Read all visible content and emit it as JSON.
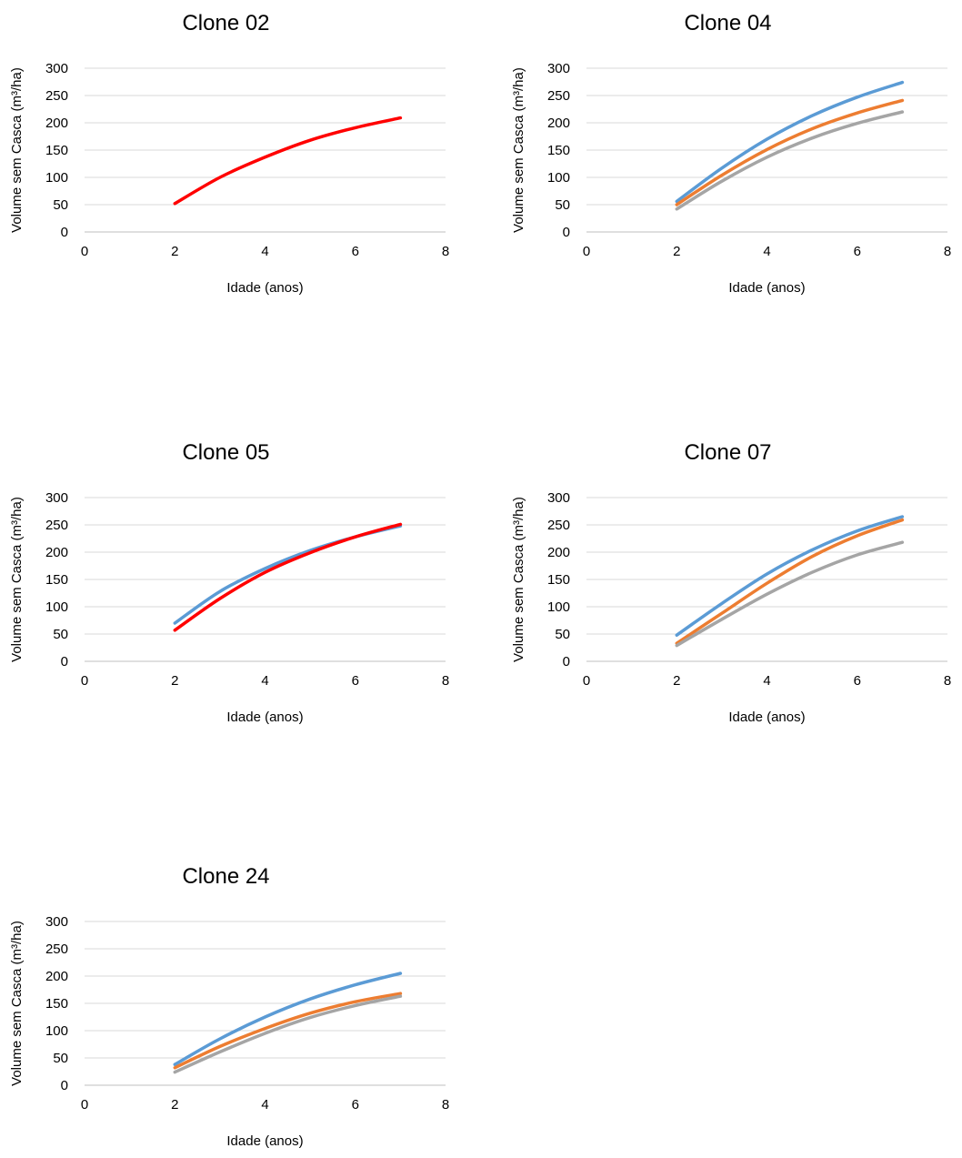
{
  "colors": {
    "blue": "#5b9bd5",
    "orange": "#ed7d31",
    "gray": "#a5a5a5",
    "red": "#ff0000",
    "grid": "#d9d9d9",
    "axis": "#bfbfbf"
  },
  "chart_data": [
    {
      "id": "clone-02",
      "type": "line",
      "title": "Clone 02",
      "xlabel": "Idade (anos)",
      "ylabel": "Volume sem Casca (m³/ha)",
      "xlim": [
        0,
        8
      ],
      "ylim": [
        0,
        300
      ],
      "xticks": [
        0,
        2,
        4,
        6,
        8
      ],
      "yticks": [
        0,
        50,
        100,
        150,
        200,
        250,
        300
      ],
      "grid": true,
      "legend": "none",
      "series": [
        {
          "color": "#ff0000",
          "points": [
            [
              2,
              52
            ],
            [
              3,
              100
            ],
            [
              4,
              137
            ],
            [
              5,
              168
            ],
            [
              6,
              191
            ],
            [
              7,
              209
            ]
          ]
        }
      ]
    },
    {
      "id": "clone-04",
      "type": "line",
      "title": "Clone 04",
      "xlabel": "Idade (anos)",
      "ylabel": "Volume sem Casca (m³/ha)",
      "xlim": [
        0,
        8
      ],
      "ylim": [
        0,
        300
      ],
      "xticks": [
        0,
        2,
        4,
        6,
        8
      ],
      "yticks": [
        0,
        50,
        100,
        150,
        200,
        250,
        300
      ],
      "grid": true,
      "legend": "none",
      "series": [
        {
          "color": "#5b9bd5",
          "points": [
            [
              2,
              56
            ],
            [
              3,
              117
            ],
            [
              4,
              170
            ],
            [
              5,
              213
            ],
            [
              6,
              247
            ],
            [
              7,
              274
            ]
          ]
        },
        {
          "color": "#ed7d31",
          "points": [
            [
              2,
              50
            ],
            [
              3,
              104
            ],
            [
              4,
              151
            ],
            [
              5,
              189
            ],
            [
              6,
              218
            ],
            [
              7,
              241
            ]
          ]
        },
        {
          "color": "#a5a5a5",
          "points": [
            [
              2,
              42
            ],
            [
              3,
              93
            ],
            [
              4,
              137
            ],
            [
              5,
              172
            ],
            [
              6,
              199
            ],
            [
              7,
              220
            ]
          ]
        }
      ]
    },
    {
      "id": "clone-05",
      "type": "line",
      "title": "Clone 05",
      "xlabel": "Idade (anos)",
      "ylabel": "Volume sem Casca (m³/ha)",
      "xlim": [
        0,
        8
      ],
      "ylim": [
        0,
        300
      ],
      "xticks": [
        0,
        2,
        4,
        6,
        8
      ],
      "yticks": [
        0,
        50,
        100,
        150,
        200,
        250,
        300
      ],
      "grid": true,
      "legend": "none",
      "series": [
        {
          "color": "#5b9bd5",
          "points": [
            [
              2,
              70
            ],
            [
              3,
              128
            ],
            [
              4,
              170
            ],
            [
              5,
              203
            ],
            [
              6,
              228
            ],
            [
              7,
              248
            ]
          ]
        },
        {
          "color": "#ff0000",
          "points": [
            [
              2,
              57
            ],
            [
              3,
              115
            ],
            [
              4,
              163
            ],
            [
              5,
              199
            ],
            [
              6,
              228
            ],
            [
              7,
              251
            ]
          ]
        }
      ]
    },
    {
      "id": "clone-07",
      "type": "line",
      "title": "Clone 07",
      "xlabel": "Idade (anos)",
      "ylabel": "Volume sem Casca (m³/ha)",
      "xlim": [
        0,
        8
      ],
      "ylim": [
        0,
        300
      ],
      "xticks": [
        0,
        2,
        4,
        6,
        8
      ],
      "yticks": [
        0,
        50,
        100,
        150,
        200,
        250,
        300
      ],
      "grid": true,
      "legend": "none",
      "series": [
        {
          "color": "#5b9bd5",
          "points": [
            [
              2,
              48
            ],
            [
              3,
              106
            ],
            [
              4,
              160
            ],
            [
              5,
              204
            ],
            [
              6,
              239
            ],
            [
              7,
              265
            ]
          ]
        },
        {
          "color": "#ed7d31",
          "points": [
            [
              2,
              33
            ],
            [
              3,
              88
            ],
            [
              4,
              143
            ],
            [
              5,
              192
            ],
            [
              6,
              230
            ],
            [
              7,
              259
            ]
          ]
        },
        {
          "color": "#a5a5a5",
          "points": [
            [
              2,
              29
            ],
            [
              3,
              77
            ],
            [
              4,
              123
            ],
            [
              5,
              163
            ],
            [
              6,
              195
            ],
            [
              7,
              218
            ]
          ]
        }
      ]
    },
    {
      "id": "clone-24",
      "type": "line",
      "title": "Clone 24",
      "xlabel": "Idade (anos)",
      "ylabel": "Volume sem Casca (m³/ha)",
      "xlim": [
        0,
        8
      ],
      "ylim": [
        0,
        300
      ],
      "xticks": [
        0,
        2,
        4,
        6,
        8
      ],
      "yticks": [
        0,
        50,
        100,
        150,
        200,
        250,
        300
      ],
      "grid": true,
      "legend": "none",
      "series": [
        {
          "color": "#5b9bd5",
          "points": [
            [
              2,
              38
            ],
            [
              3,
              85
            ],
            [
              4,
              125
            ],
            [
              5,
              158
            ],
            [
              6,
              184
            ],
            [
              7,
              205
            ]
          ]
        },
        {
          "color": "#ed7d31",
          "points": [
            [
              2,
              32
            ],
            [
              3,
              71
            ],
            [
              4,
              104
            ],
            [
              5,
              132
            ],
            [
              6,
              153
            ],
            [
              7,
              168
            ]
          ]
        },
        {
          "color": "#a5a5a5",
          "points": [
            [
              2,
              24
            ],
            [
              3,
              61
            ],
            [
              4,
              95
            ],
            [
              5,
              124
            ],
            [
              6,
              146
            ],
            [
              7,
              163
            ]
          ]
        }
      ]
    }
  ]
}
